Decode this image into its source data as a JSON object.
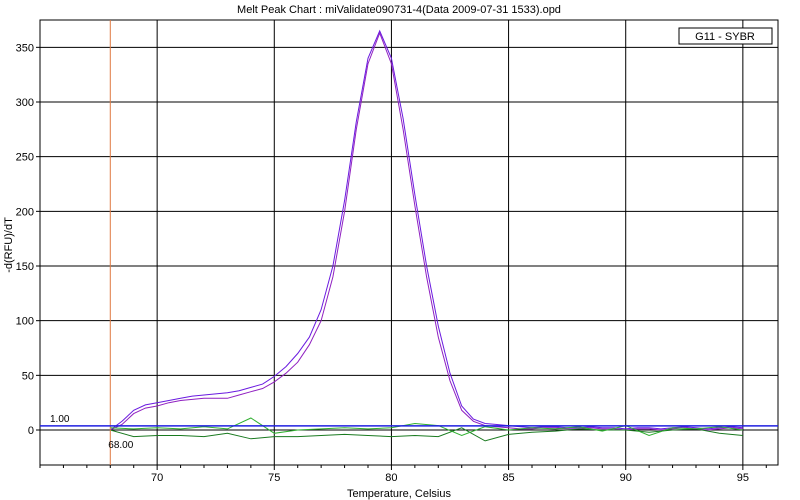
{
  "chart_data": {
    "type": "line",
    "title": "Melt Peak Chart : miValidate090731-4(Data 2009-07-31 1533).opd",
    "xlabel": "Temperature, Celsius",
    "ylabel": "-d(RFU)/dT",
    "xlim": [
      65,
      96.5
    ],
    "ylim": [
      -32,
      375
    ],
    "xticks": [
      70,
      75,
      80,
      85,
      90,
      95
    ],
    "yticks": [
      0,
      50,
      100,
      150,
      200,
      250,
      300,
      350
    ],
    "grid": true,
    "legend": {
      "placement": "top-right",
      "entries": [
        "G11 - SYBR"
      ]
    },
    "annotations": {
      "threshold_label": "1.00",
      "threshold_value": 1.0,
      "start_temp_label": "68.00",
      "start_temp_value": 68.0
    },
    "colors": {
      "threshold": "#2020e0",
      "start_line": "#e07840",
      "peak": "#8020e0",
      "negative": "#20a040"
    },
    "series": [
      {
        "color": "#9020c0",
        "x": [
          68,
          68.5,
          69,
          69.5,
          70,
          70.5,
          71,
          71.5,
          72,
          72.5,
          73,
          73.5,
          74,
          74.5,
          75,
          75.5,
          76,
          76.5,
          77,
          77.5,
          78,
          78.5,
          79,
          79.5,
          80,
          80.5,
          81,
          81.5,
          82,
          82.5,
          83,
          83.5,
          84,
          84.5,
          85,
          85.5,
          86,
          86.5,
          87,
          87.5,
          88,
          88.5,
          89,
          89.5,
          90,
          90.5,
          91,
          91.5,
          92,
          92.5,
          93,
          93.5,
          94,
          94.5,
          95
        ],
        "y": [
          0,
          5,
          15,
          20,
          22,
          25,
          27,
          28,
          29,
          29,
          29,
          32,
          35,
          38,
          44,
          52,
          62,
          78,
          100,
          140,
          200,
          275,
          335,
          363,
          335,
          275,
          205,
          140,
          85,
          45,
          18,
          8,
          4,
          3,
          2,
          1,
          1,
          2,
          2,
          1,
          1,
          2,
          1,
          1,
          0,
          1,
          1,
          0,
          1,
          2,
          1,
          0,
          1,
          2,
          1
        ]
      },
      {
        "color": "#6a1ae0",
        "x": [
          68,
          68.5,
          69,
          69.5,
          70,
          70.5,
          71,
          71.5,
          72,
          72.5,
          73,
          73.5,
          74,
          74.5,
          75,
          75.5,
          76,
          76.5,
          77,
          77.5,
          78,
          78.5,
          79,
          79.5,
          80,
          80.5,
          81,
          81.5,
          82,
          82.5,
          83,
          83.5,
          84,
          84.5,
          85,
          85.5,
          86,
          86.5,
          87,
          87.5,
          88,
          88.5,
          89,
          89.5,
          90,
          90.5,
          91,
          91.5,
          92,
          92.5,
          93,
          93.5,
          94,
          94.5,
          95
        ],
        "y": [
          0,
          8,
          18,
          23,
          25,
          27,
          29,
          31,
          32,
          33,
          34,
          36,
          39,
          42,
          49,
          58,
          70,
          85,
          110,
          150,
          210,
          282,
          340,
          365,
          340,
          285,
          215,
          150,
          95,
          52,
          22,
          10,
          6,
          5,
          4,
          3,
          2,
          3,
          3,
          2,
          2,
          3,
          2,
          2,
          1,
          2,
          2,
          1,
          2,
          3,
          2,
          1,
          2,
          3,
          2
        ]
      },
      {
        "color": "#1a7a20",
        "x": [
          68,
          69,
          70,
          71,
          72,
          73,
          74,
          75,
          76,
          77,
          78,
          79,
          80,
          81,
          82,
          83,
          84,
          85,
          86,
          87,
          88,
          89,
          90,
          91,
          92,
          93,
          94,
          95
        ],
        "y": [
          0,
          -6,
          -5,
          -5,
          -6,
          -3,
          -8,
          -6,
          -6,
          -5,
          -4,
          -5,
          -6,
          -5,
          -6,
          2,
          -10,
          -4,
          -2,
          -1,
          1,
          0,
          0,
          -2,
          0,
          1,
          -3,
          -5
        ]
      },
      {
        "color": "#30b030",
        "x": [
          68,
          69,
          70,
          71,
          72,
          73,
          74,
          75,
          76,
          77,
          78,
          79,
          80,
          81,
          82,
          83,
          84,
          85,
          86,
          87,
          88,
          89,
          90,
          91,
          92,
          93,
          94,
          95
        ],
        "y": [
          2,
          1,
          2,
          1,
          3,
          1,
          11,
          -3,
          0,
          1,
          2,
          1,
          2,
          6,
          4,
          -5,
          3,
          0,
          2,
          1,
          3,
          -1,
          4,
          -5,
          2,
          1,
          3,
          0
        ]
      }
    ]
  }
}
